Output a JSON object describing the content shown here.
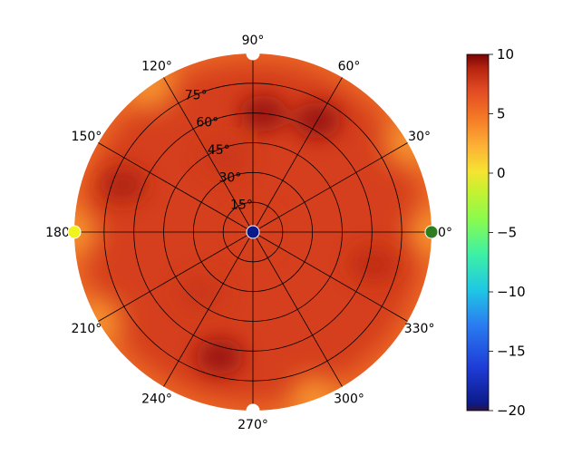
{
  "chart_data": {
    "type": "heatmap",
    "projection": "polar",
    "angle_ticks": [
      "0°",
      "30°",
      "60°",
      "90°",
      "120°",
      "150°",
      "180°",
      "210°",
      "240°",
      "270°",
      "300°",
      "330°"
    ],
    "angle_tick_values": [
      0,
      30,
      60,
      90,
      120,
      150,
      180,
      210,
      240,
      270,
      300,
      330
    ],
    "radial_ticks": [
      "15°",
      "30°",
      "45°",
      "60°",
      "75°"
    ],
    "radial_tick_values": [
      15,
      30,
      45,
      60,
      75
    ],
    "radial_range": [
      0,
      90
    ],
    "grid": true,
    "base_value": 7.5,
    "dark_patches": [
      {
        "azimuth": 85,
        "elevation": 60,
        "value": 9.5
      },
      {
        "azimuth": 60,
        "elevation": 65,
        "value": 9.5
      },
      {
        "azimuth": 160,
        "elevation": 70,
        "value": 9.0
      },
      {
        "azimuth": 255,
        "elevation": 65,
        "value": 9.5
      },
      {
        "azimuth": 345,
        "elevation": 63,
        "value": 8.5
      },
      {
        "azimuth": 110,
        "elevation": 40,
        "value": 8.0
      },
      {
        "azimuth": 230,
        "elevation": 40,
        "value": 8.0
      }
    ],
    "edge_low_azimuths": [
      0,
      30,
      125,
      180,
      210,
      290
    ],
    "edge_value": 3.5,
    "markers": [
      {
        "azimuth": 0,
        "elevation": 90,
        "color": "#2e7d1e"
      },
      {
        "azimuth": 90,
        "elevation": 90,
        "color": "#ffffff"
      },
      {
        "azimuth": 180,
        "elevation": 90,
        "color": "#f2f21c"
      },
      {
        "azimuth": 270,
        "elevation": 90,
        "color": "#ffffff"
      },
      {
        "azimuth": 0,
        "elevation": 0,
        "color": "#0a1a8c"
      }
    ],
    "colorbar": {
      "min": -20,
      "max": 10,
      "ticks": [
        "10",
        "5",
        "0",
        "−5",
        "−10",
        "−15",
        "−20"
      ],
      "tick_values": [
        10,
        5,
        0,
        -5,
        -10,
        -15,
        -20
      ],
      "colormap": "turbo"
    }
  }
}
